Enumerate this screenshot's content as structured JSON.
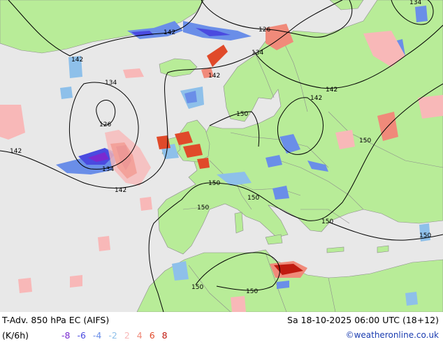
{
  "footer": {
    "title": "T-Adv. 850 hPa   EC (AIFS)",
    "valid_time": "Sa 18-10-2025 06:00 UTC (18+12)",
    "unit": "(K/6h)",
    "credit": "©weatheronline.co.uk"
  },
  "legend": {
    "items": [
      {
        "label": "-8",
        "color": "#7a2ad0"
      },
      {
        "label": "-6",
        "color": "#4a4ae0"
      },
      {
        "label": "-4",
        "color": "#6a8ee8"
      },
      {
        "label": "-2",
        "color": "#8ec0ea"
      },
      {
        "label": "2",
        "color": "#f8b8b8"
      },
      {
        "label": "4",
        "color": "#f08a7a"
      },
      {
        "label": "6",
        "color": "#e04a2a"
      },
      {
        "label": "8",
        "color": "#c01a10"
      }
    ]
  },
  "map": {
    "colors": {
      "sea": "#e8e8e8",
      "land": "#b8ec98",
      "border": "#8c8c8c",
      "contour": "#000000"
    },
    "contour_labels": [
      "142",
      "142",
      "126",
      "134",
      "134",
      "142",
      "142",
      "134",
      "126",
      "142",
      "134",
      "142",
      "150",
      "150",
      "142",
      "150",
      "150",
      "150",
      "150",
      "150",
      "150",
      "150"
    ]
  }
}
